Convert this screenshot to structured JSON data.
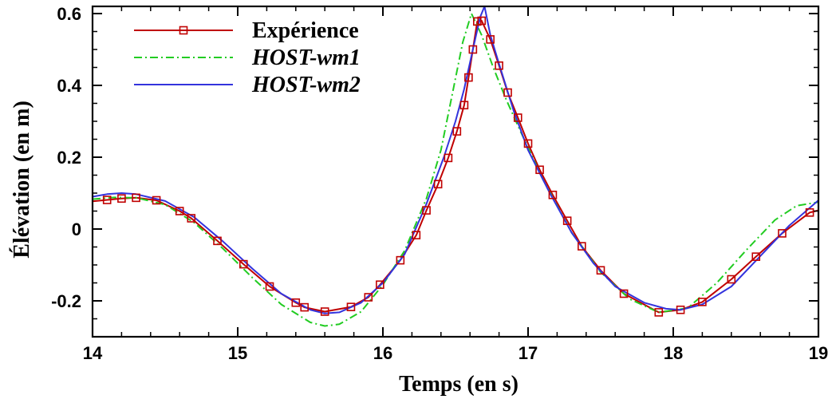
{
  "chart_data": {
    "type": "line",
    "xlabel": "Temps (en s)",
    "ylabel": "Élévation (en m)",
    "xlim": [
      14,
      19
    ],
    "ylim": [
      -0.3,
      0.62
    ],
    "xticks": [
      "14",
      "15",
      "16",
      "17",
      "18",
      "19"
    ],
    "yticks": [
      "-0.2",
      "0",
      "0.2",
      "0.4",
      "0.6"
    ],
    "grid": false,
    "legend_position": "top-left",
    "series": [
      {
        "name": "Expérience",
        "color": "#c00000",
        "style": "solid-square-markers",
        "x": [
          14.0,
          14.1,
          14.2,
          14.3,
          14.44,
          14.6,
          14.68,
          14.86,
          15.04,
          15.22,
          15.4,
          15.46,
          15.6,
          15.78,
          15.9,
          15.98,
          16.12,
          16.23,
          16.3,
          16.38,
          16.45,
          16.51,
          16.56,
          16.59,
          16.62,
          16.65,
          16.68,
          16.74,
          16.8,
          16.86,
          16.93,
          17.0,
          17.08,
          17.17,
          17.27,
          17.37,
          17.5,
          17.66,
          17.9,
          18.05,
          18.2,
          18.4,
          18.57,
          18.75,
          18.94,
          19.0
        ],
        "y": [
          0.077,
          0.081,
          0.085,
          0.087,
          0.08,
          0.05,
          0.03,
          -0.033,
          -0.098,
          -0.16,
          -0.205,
          -0.218,
          -0.23,
          -0.217,
          -0.19,
          -0.155,
          -0.087,
          -0.017,
          0.052,
          0.125,
          0.198,
          0.272,
          0.345,
          0.422,
          0.5,
          0.578,
          0.58,
          0.528,
          0.455,
          0.38,
          0.31,
          0.238,
          0.165,
          0.095,
          0.023,
          -0.048,
          -0.115,
          -0.18,
          -0.232,
          -0.225,
          -0.203,
          -0.14,
          -0.077,
          -0.012,
          0.046,
          0.052
        ]
      },
      {
        "name": "HOST-wm1",
        "color": "#22cc22",
        "style": "dash-dot",
        "x": [
          14.0,
          14.15,
          14.3,
          14.5,
          14.7,
          14.9,
          15.1,
          15.3,
          15.5,
          15.6,
          15.7,
          15.85,
          16.0,
          16.15,
          16.3,
          16.4,
          16.48,
          16.55,
          16.61,
          16.68,
          16.76,
          16.85,
          16.95,
          17.1,
          17.3,
          17.5,
          17.7,
          17.9,
          18.1,
          18.3,
          18.5,
          18.7,
          18.85,
          19.0
        ],
        "y": [
          0.083,
          0.088,
          0.087,
          0.068,
          0.018,
          -0.055,
          -0.135,
          -0.21,
          -0.26,
          -0.27,
          -0.265,
          -0.23,
          -0.155,
          -0.06,
          0.085,
          0.22,
          0.38,
          0.52,
          0.6,
          0.54,
          0.45,
          0.36,
          0.27,
          0.14,
          -0.01,
          -0.12,
          -0.195,
          -0.232,
          -0.22,
          -0.15,
          -0.06,
          0.025,
          0.065,
          0.075
        ]
      },
      {
        "name": "HOST-wm2",
        "color": "#3333dd",
        "style": "solid",
        "x": [
          14.0,
          14.1,
          14.2,
          14.3,
          14.5,
          14.7,
          14.9,
          15.1,
          15.3,
          15.5,
          15.6,
          15.7,
          15.85,
          16.0,
          16.15,
          16.3,
          16.42,
          16.5,
          16.56,
          16.62,
          16.67,
          16.7,
          16.74,
          16.8,
          16.9,
          17.0,
          17.15,
          17.3,
          17.45,
          17.6,
          17.8,
          17.95,
          18.05,
          18.2,
          18.4,
          18.6,
          18.8,
          19.0
        ],
        "y": [
          0.09,
          0.097,
          0.1,
          0.097,
          0.078,
          0.033,
          -0.035,
          -0.11,
          -0.18,
          -0.225,
          -0.235,
          -0.232,
          -0.205,
          -0.15,
          -0.07,
          0.07,
          0.2,
          0.3,
          0.39,
          0.5,
          0.59,
          0.62,
          0.54,
          0.46,
          0.33,
          0.22,
          0.1,
          -0.01,
          -0.095,
          -0.16,
          -0.205,
          -0.222,
          -0.225,
          -0.21,
          -0.16,
          -0.075,
          0.01,
          0.08
        ]
      }
    ]
  }
}
